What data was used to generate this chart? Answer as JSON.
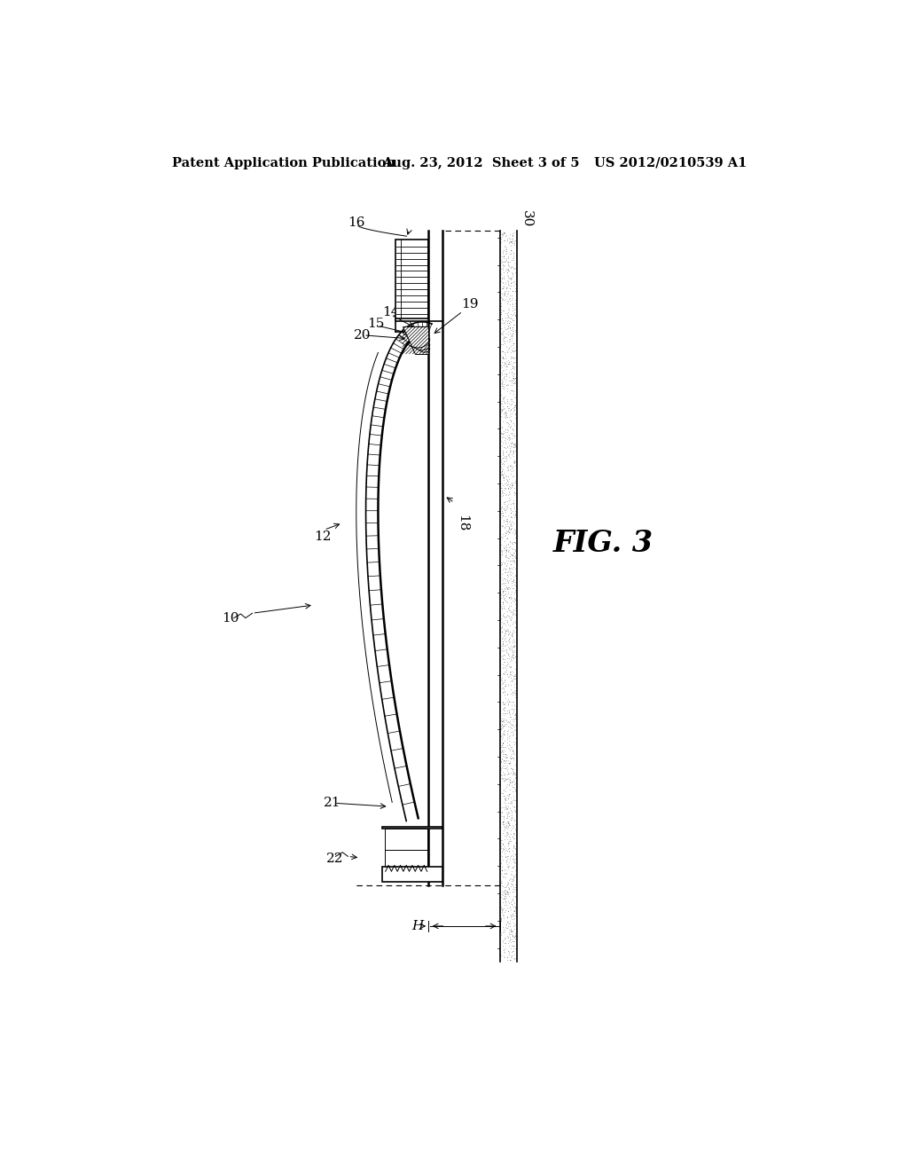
{
  "title_left": "Patent Application Publication",
  "title_center": "Aug. 23, 2012  Sheet 3 of 5",
  "title_right": "US 2012/0210539 A1",
  "fig_label": "FIG. 3",
  "background_color": "#ffffff",
  "line_color": "#000000",
  "label_fontsize": 11,
  "header_fontsize": 10.5,
  "fig3_fontsize": 24
}
